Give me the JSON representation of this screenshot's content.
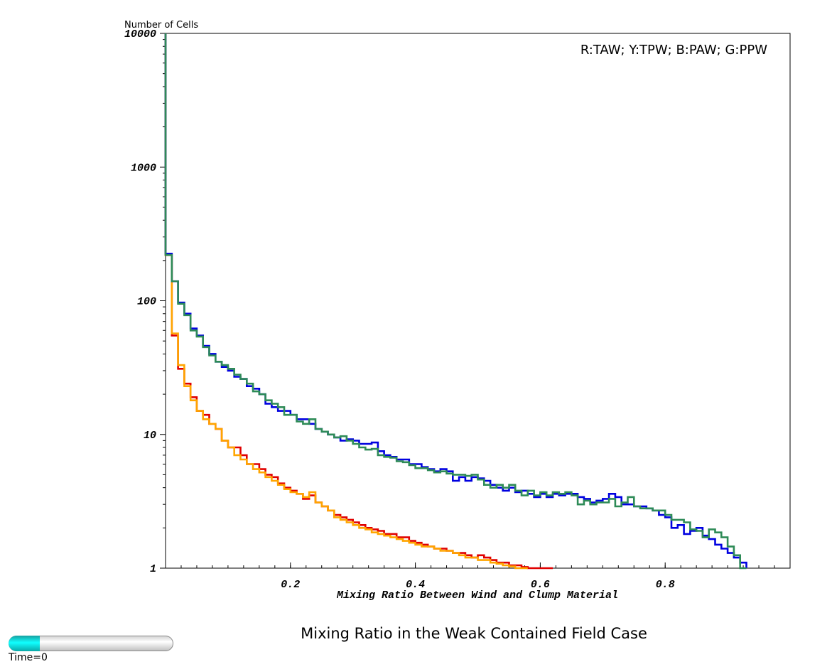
{
  "chart_data": {
    "type": "line",
    "step": true,
    "yscale": "log",
    "ylabel": "Number of Cells",
    "xlabel": "Mixing Ratio Between Wind and Clump Material",
    "legend_text": "R:TAW; Y:TPW; B:PAW; G:PPW",
    "legend_position": "top-right",
    "xlim": [
      0.0,
      1.0
    ],
    "ylim": [
      1,
      10000
    ],
    "xticks": [
      0.2,
      0.4,
      0.6,
      0.8
    ],
    "xtick_labels": [
      "0.2",
      "0.4",
      "0.6",
      "0.8"
    ],
    "yticks": [
      1,
      10,
      100,
      1000,
      10000
    ],
    "ytick_labels": [
      "1",
      "10",
      "100",
      "1000",
      "10000"
    ],
    "grid": false,
    "series": [
      {
        "name": "TAW",
        "color": "#e00000",
        "x": [
          0.01,
          0.02,
          0.03,
          0.04,
          0.05,
          0.06,
          0.07,
          0.08,
          0.09,
          0.1,
          0.11,
          0.12,
          0.13,
          0.14,
          0.15,
          0.16,
          0.17,
          0.18,
          0.19,
          0.2,
          0.21,
          0.22,
          0.23,
          0.24,
          0.25,
          0.26,
          0.27,
          0.28,
          0.29,
          0.3,
          0.31,
          0.32,
          0.33,
          0.34,
          0.35,
          0.36,
          0.37,
          0.38,
          0.39,
          0.4,
          0.41,
          0.42,
          0.43,
          0.44,
          0.45,
          0.46,
          0.47,
          0.48,
          0.49,
          0.5,
          0.51,
          0.52,
          0.53,
          0.54,
          0.55,
          0.56,
          0.57,
          0.58,
          0.59,
          0.6,
          0.61,
          0.62
        ],
        "values": [
          220,
          55,
          31,
          24,
          19,
          15,
          14,
          12,
          11,
          9,
          8,
          8,
          7,
          6,
          6,
          5.5,
          5,
          4.8,
          4.3,
          4.0,
          3.8,
          3.6,
          3.3,
          3.5,
          3.1,
          2.9,
          2.7,
          2.5,
          2.4,
          2.3,
          2.2,
          2.1,
          2.0,
          1.95,
          1.9,
          1.8,
          1.8,
          1.7,
          1.7,
          1.6,
          1.55,
          1.5,
          1.45,
          1.4,
          1.4,
          1.35,
          1.3,
          1.3,
          1.25,
          1.2,
          1.25,
          1.2,
          1.15,
          1.1,
          1.1,
          1.05,
          1.05,
          1.02,
          1.0,
          1.0,
          1.0,
          1.0
        ]
      },
      {
        "name": "TPW",
        "color": "#ffa500",
        "x": [
          0.01,
          0.02,
          0.03,
          0.04,
          0.05,
          0.06,
          0.07,
          0.08,
          0.09,
          0.1,
          0.11,
          0.12,
          0.13,
          0.14,
          0.15,
          0.16,
          0.17,
          0.18,
          0.19,
          0.2,
          0.21,
          0.22,
          0.23,
          0.24,
          0.25,
          0.26,
          0.27,
          0.28,
          0.29,
          0.3,
          0.31,
          0.32,
          0.33,
          0.34,
          0.35,
          0.36,
          0.37,
          0.38,
          0.39,
          0.4,
          0.41,
          0.42,
          0.43,
          0.44,
          0.45,
          0.46,
          0.47,
          0.48,
          0.49,
          0.5,
          0.51,
          0.52,
          0.53,
          0.54,
          0.55,
          0.56,
          0.57,
          0.58
        ],
        "values": [
          220,
          57,
          33,
          23,
          18,
          15,
          13,
          12,
          11,
          9,
          8,
          7,
          6.5,
          6,
          5.5,
          5.2,
          4.8,
          4.5,
          4.2,
          3.9,
          3.7,
          3.6,
          3.4,
          3.7,
          3.1,
          2.9,
          2.7,
          2.4,
          2.3,
          2.2,
          2.1,
          2.0,
          1.95,
          1.85,
          1.8,
          1.75,
          1.7,
          1.65,
          1.6,
          1.55,
          1.5,
          1.45,
          1.45,
          1.4,
          1.35,
          1.35,
          1.3,
          1.25,
          1.2,
          1.2,
          1.15,
          1.15,
          1.1,
          1.08,
          1.05,
          1.03,
          1.0,
          1.0
        ]
      },
      {
        "name": "PAW",
        "color": "#0000e0",
        "x": [
          0.01,
          0.02,
          0.03,
          0.04,
          0.05,
          0.06,
          0.07,
          0.08,
          0.09,
          0.1,
          0.11,
          0.12,
          0.13,
          0.14,
          0.15,
          0.16,
          0.17,
          0.18,
          0.19,
          0.2,
          0.21,
          0.22,
          0.23,
          0.24,
          0.25,
          0.26,
          0.27,
          0.28,
          0.29,
          0.3,
          0.31,
          0.32,
          0.33,
          0.34,
          0.35,
          0.36,
          0.37,
          0.38,
          0.39,
          0.4,
          0.41,
          0.42,
          0.43,
          0.44,
          0.45,
          0.46,
          0.47,
          0.48,
          0.49,
          0.5,
          0.51,
          0.52,
          0.53,
          0.54,
          0.55,
          0.56,
          0.57,
          0.58,
          0.59,
          0.6,
          0.61,
          0.62,
          0.63,
          0.64,
          0.65,
          0.66,
          0.67,
          0.68,
          0.69,
          0.7,
          0.71,
          0.72,
          0.73,
          0.74,
          0.75,
          0.76,
          0.77,
          0.78,
          0.79,
          0.8,
          0.81,
          0.82,
          0.83,
          0.84,
          0.85,
          0.86,
          0.87,
          0.88,
          0.89,
          0.9,
          0.91,
          0.92,
          0.93
        ],
        "values": [
          225,
          140,
          97,
          80,
          62,
          55,
          46,
          40,
          35,
          32,
          30,
          27,
          26,
          23,
          22,
          20,
          17,
          16,
          15,
          15,
          14,
          13,
          13,
          12,
          11,
          10.5,
          10,
          9.5,
          9,
          9.2,
          9,
          8.5,
          8.5,
          8.7,
          7.5,
          7.0,
          6.8,
          6.5,
          6.5,
          6.0,
          6.0,
          5.7,
          5.5,
          5.3,
          5.5,
          5.3,
          4.5,
          4.8,
          4.5,
          4.8,
          4.7,
          4.5,
          4.2,
          4.0,
          3.8,
          4.0,
          3.7,
          3.8,
          3.6,
          3.4,
          3.6,
          3.4,
          3.6,
          3.5,
          3.6,
          3.6,
          3.4,
          3.3,
          3.1,
          3.2,
          3.3,
          3.6,
          3.4,
          3.0,
          3.0,
          2.9,
          2.9,
          2.8,
          2.7,
          2.5,
          2.4,
          2.0,
          2.1,
          1.8,
          1.9,
          2.0,
          1.75,
          1.65,
          1.5,
          1.4,
          1.3,
          1.2,
          1.1
        ]
      },
      {
        "name": "PPW",
        "color": "#2e8b57",
        "x": [
          0.01,
          0.02,
          0.03,
          0.04,
          0.05,
          0.06,
          0.07,
          0.08,
          0.09,
          0.1,
          0.11,
          0.12,
          0.13,
          0.14,
          0.15,
          0.16,
          0.17,
          0.18,
          0.19,
          0.2,
          0.21,
          0.22,
          0.23,
          0.24,
          0.25,
          0.26,
          0.27,
          0.28,
          0.29,
          0.3,
          0.31,
          0.32,
          0.33,
          0.34,
          0.35,
          0.36,
          0.37,
          0.38,
          0.39,
          0.4,
          0.41,
          0.42,
          0.43,
          0.44,
          0.45,
          0.46,
          0.47,
          0.48,
          0.49,
          0.5,
          0.51,
          0.52,
          0.53,
          0.54,
          0.55,
          0.56,
          0.57,
          0.58,
          0.59,
          0.6,
          0.61,
          0.62,
          0.63,
          0.64,
          0.65,
          0.66,
          0.67,
          0.68,
          0.69,
          0.7,
          0.71,
          0.72,
          0.73,
          0.74,
          0.75,
          0.76,
          0.77,
          0.78,
          0.79,
          0.8,
          0.81,
          0.82,
          0.83,
          0.84,
          0.85,
          0.86,
          0.87,
          0.88,
          0.89,
          0.9,
          0.91,
          0.92,
          0.93
        ],
        "values": [
          220,
          140,
          95,
          78,
          60,
          54,
          45,
          39,
          35,
          33,
          31,
          28,
          26,
          24,
          21,
          20,
          18,
          17,
          16,
          14,
          14,
          12.5,
          12,
          13,
          11,
          10.5,
          10,
          9.5,
          9.7,
          9.0,
          8.5,
          8.0,
          7.7,
          7.8,
          7.0,
          6.8,
          6.7,
          6.3,
          6.2,
          5.9,
          5.6,
          5.6,
          5.4,
          5.2,
          5.3,
          5.1,
          5.0,
          5.0,
          4.9,
          5.0,
          4.6,
          4.2,
          4.0,
          4.2,
          4.0,
          4.2,
          3.8,
          3.5,
          3.8,
          3.5,
          3.7,
          3.5,
          3.7,
          3.6,
          3.7,
          3.5,
          3.0,
          3.2,
          3.0,
          3.1,
          3.1,
          3.3,
          2.9,
          3.1,
          3.4,
          2.9,
          2.8,
          2.8,
          2.7,
          2.7,
          2.5,
          2.3,
          2.3,
          2.2,
          1.95,
          1.9,
          1.7,
          1.95,
          1.85,
          1.7,
          1.45,
          1.25,
          1.0
        ]
      }
    ]
  },
  "footer": {
    "title": "Mixing Ratio in the Weak Contained Field Case",
    "time_label": "Time=0",
    "time_progress": 0.19
  }
}
